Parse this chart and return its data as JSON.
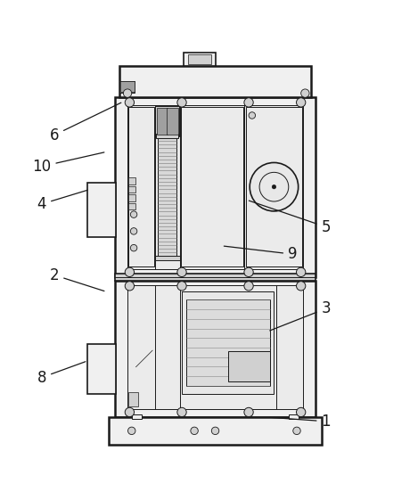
{
  "bg_color": "#ffffff",
  "line_color": "#1a1a1a",
  "fill_light": "#f0f0f0",
  "fill_mid": "#d0d0d0",
  "fill_dark": "#a0a0a0",
  "label_fontsize": 12,
  "figsize": [
    4.69,
    5.61
  ],
  "dpi": 100,
  "annotations": [
    [
      "6",
      [
        0.13,
        0.775
      ],
      [
        0.295,
        0.855
      ]
    ],
    [
      "10",
      [
        0.1,
        0.7
      ],
      [
        0.255,
        0.735
      ]
    ],
    [
      "4",
      [
        0.1,
        0.61
      ],
      [
        0.215,
        0.645
      ]
    ],
    [
      "2",
      [
        0.13,
        0.44
      ],
      [
        0.255,
        0.4
      ]
    ],
    [
      "8",
      [
        0.1,
        0.195
      ],
      [
        0.21,
        0.235
      ]
    ],
    [
      "5",
      [
        0.78,
        0.555
      ],
      [
        0.59,
        0.62
      ]
    ],
    [
      "9",
      [
        0.7,
        0.49
      ],
      [
        0.53,
        0.51
      ]
    ],
    [
      "3",
      [
        0.78,
        0.36
      ],
      [
        0.64,
        0.305
      ]
    ],
    [
      "1",
      [
        0.78,
        0.09
      ],
      [
        0.64,
        0.1
      ]
    ]
  ]
}
